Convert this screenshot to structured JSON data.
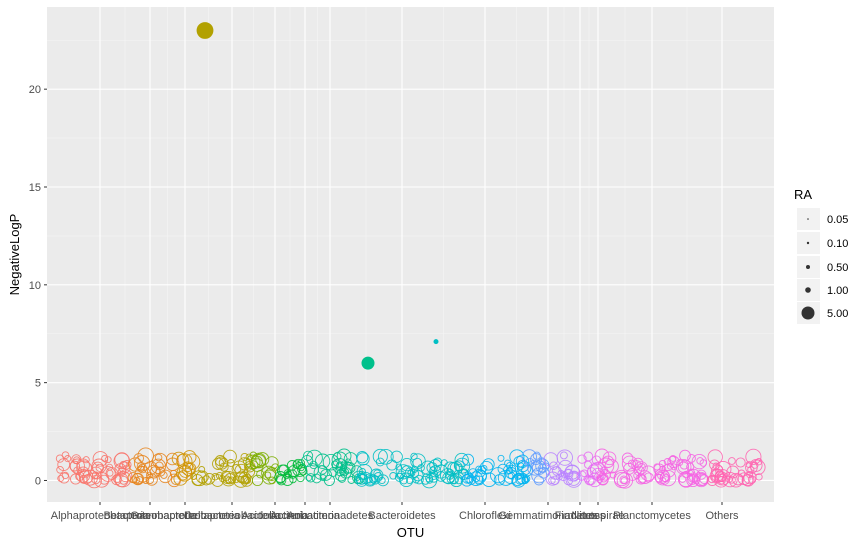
{
  "chart_data": {
    "type": "scatter",
    "xlabel": "OTU",
    "ylabel": "NegativeLogP",
    "ylim": [
      -1.1,
      24.2
    ],
    "y_ticks": [
      0,
      5,
      10,
      15,
      20
    ],
    "y_tick_labels": [
      "0",
      "5",
      "10",
      "15",
      "20"
    ],
    "grid": true,
    "legend_position": "right",
    "categories": [
      {
        "label": "Alphaproteobacteria",
        "color": "#F8766D"
      },
      {
        "label": "Betaproteobacteria",
        "color": "#E7851E"
      },
      {
        "label": "Gammaproteobacteria",
        "color": "#D09400"
      },
      {
        "label": "Deltaproteobacteria",
        "color": "#B2A100"
      },
      {
        "label": "Acidobacteria",
        "color": "#7CAE00"
      },
      {
        "label": "Actinobacteria",
        "color": "#00BA38"
      },
      {
        "label": "Armatimonadetes",
        "color": "#00C08B"
      },
      {
        "label": "Bacteroidetes",
        "color": "#00BFC4"
      },
      {
        "label": "Chloroflexi",
        "color": "#00B4F0"
      },
      {
        "label": "Gemmatimonadetes",
        "color": "#619CFF"
      },
      {
        "label": "Firmicutes",
        "color": "#B983FF"
      },
      {
        "label": "Nitrospirae",
        "color": "#E76BF3"
      },
      {
        "label": "Planctomycetes",
        "color": "#F564E3"
      },
      {
        "label": "Others",
        "color": "#FF64B0"
      }
    ],
    "x_tick_labels": [
      "Alphaproteobacteria",
      "Betaproteobacteria",
      "Gammaproteobacteria",
      "Deltaproteobacteria",
      "Acidobacteria",
      "Actinobacteria",
      "Armatimonadetes",
      "Bacteroidetes",
      "Chloroflexi",
      "Gemmatimonadetes",
      "Firmicutes",
      "Nitrospirae",
      "Planctomycetes",
      "Others"
    ],
    "highlighted_points": [
      {
        "category": "Deltaproteobacteria",
        "y": 23.0,
        "ra": 5.0,
        "filled": true
      },
      {
        "category": "Armatimonadetes",
        "y": 6.0,
        "ra": 2.5,
        "filled": true
      },
      {
        "category": "Bacteroidetes",
        "y": 7.1,
        "ra": 0.05,
        "filled": true
      }
    ],
    "bulk_points": {
      "y_range": [
        0,
        1.3
      ],
      "ra_range": [
        0.3,
        5.0
      ],
      "marker": "hollow circle",
      "description": "many OTUs per category with low NegativeLogP"
    },
    "size_legend": {
      "title": "RA",
      "entries": [
        {
          "label": "0.05",
          "value": 0.05
        },
        {
          "label": "0.10",
          "value": 0.1
        },
        {
          "label": "0.50",
          "value": 0.5
        },
        {
          "label": "1.00",
          "value": 1.0
        },
        {
          "label": "5.00",
          "value": 5.0
        }
      ]
    }
  }
}
